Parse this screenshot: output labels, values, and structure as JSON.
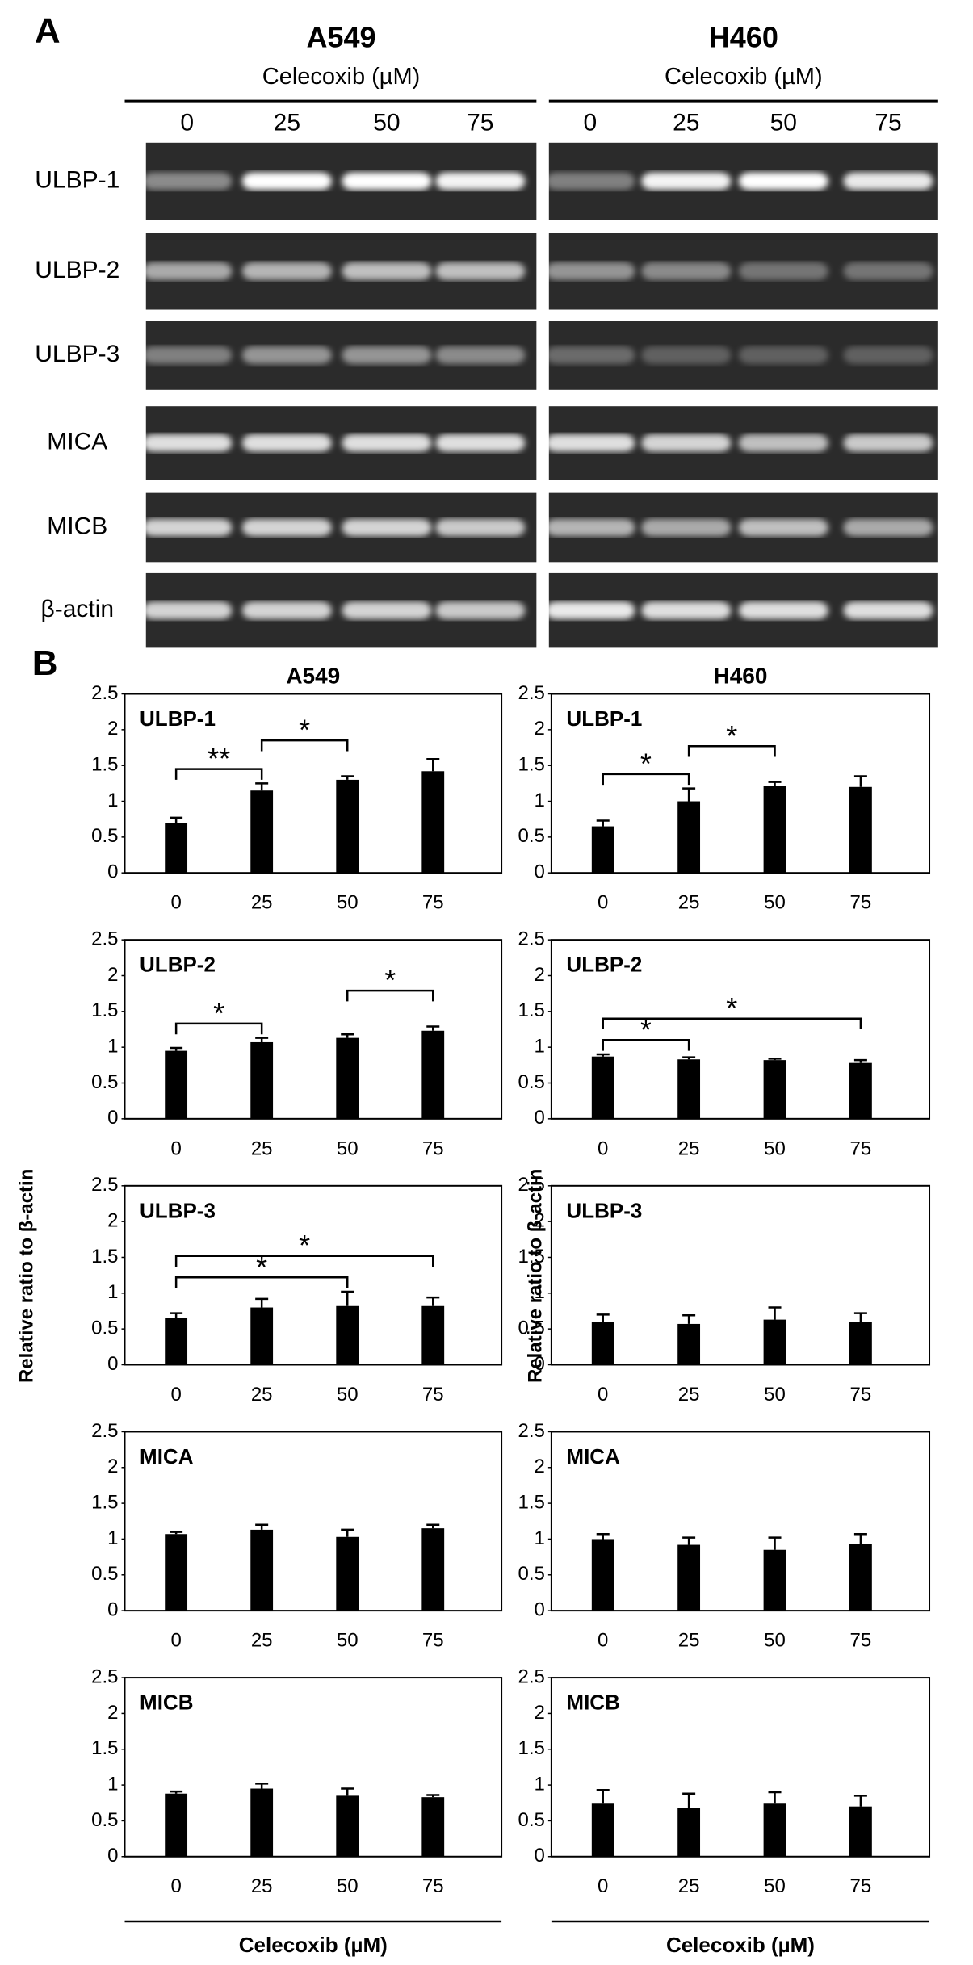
{
  "panel_a": {
    "label": "A",
    "cell_lines": [
      {
        "name": "A549",
        "treatment": "Celecoxib (µM)",
        "doses": [
          "0",
          "25",
          "50",
          "75"
        ]
      },
      {
        "name": "H460",
        "treatment": "Celecoxib (µM)",
        "doses": [
          "0",
          "25",
          "50",
          "75"
        ]
      }
    ],
    "genes": [
      "ULBP-1",
      "ULBP-2",
      "ULBP-3",
      "MICA",
      "MICB",
      "β-actin"
    ]
  },
  "panel_b": {
    "label": "B",
    "columns": [
      "A549",
      "H460"
    ],
    "y_label": "Relative ratio to β-actin",
    "x_label": "Celecoxib (µM)"
  },
  "chart_data": [
    {
      "type": "bar",
      "title": "ULBP-1",
      "categories": [
        "0",
        "25",
        "50",
        "75"
      ],
      "values": [
        0.7,
        1.15,
        1.3,
        1.42
      ],
      "errors": [
        0.07,
        0.1,
        0.05,
        0.17
      ],
      "color": "#000000",
      "ylim": [
        0,
        2.5
      ],
      "yticks": [
        0,
        0.5,
        1,
        1.5,
        2,
        2.5
      ],
      "annotations": [
        {
          "between": [
            "0",
            "25"
          ],
          "label": "**"
        },
        {
          "between": [
            "25",
            "50"
          ],
          "label": "*"
        }
      ]
    },
    {
      "type": "bar",
      "title": "ULBP-1",
      "categories": [
        "0",
        "25",
        "50",
        "75"
      ],
      "values": [
        0.65,
        1.0,
        1.22,
        1.2
      ],
      "errors": [
        0.08,
        0.18,
        0.05,
        0.15
      ],
      "color": "#000000",
      "ylim": [
        0,
        2.5
      ],
      "yticks": [
        0,
        0.5,
        1,
        1.5,
        2,
        2.5
      ],
      "annotations": [
        {
          "between": [
            "0",
            "25"
          ],
          "label": "*"
        },
        {
          "between": [
            "25",
            "50"
          ],
          "label": "*"
        }
      ]
    },
    {
      "type": "bar",
      "title": "ULBP-2",
      "categories": [
        "0",
        "25",
        "50",
        "75"
      ],
      "values": [
        0.95,
        1.07,
        1.13,
        1.23
      ],
      "errors": [
        0.04,
        0.06,
        0.05,
        0.06
      ],
      "color": "#000000",
      "ylim": [
        0,
        2.5
      ],
      "yticks": [
        0,
        0.5,
        1,
        1.5,
        2,
        2.5
      ],
      "annotations": [
        {
          "between": [
            "0",
            "25"
          ],
          "label": "*"
        },
        {
          "between": [
            "50",
            "75"
          ],
          "label": "*"
        }
      ]
    },
    {
      "type": "bar",
      "title": "ULBP-2",
      "categories": [
        "0",
        "25",
        "50",
        "75"
      ],
      "values": [
        0.87,
        0.83,
        0.82,
        0.78
      ],
      "errors": [
        0.03,
        0.03,
        0.02,
        0.04
      ],
      "color": "#000000",
      "ylim": [
        0,
        2.5
      ],
      "yticks": [
        0,
        0.5,
        1,
        1.5,
        2,
        2.5
      ],
      "annotations": [
        {
          "between": [
            "0",
            "25"
          ],
          "label": "*"
        },
        {
          "between": [
            "0",
            "75"
          ],
          "label": "*"
        }
      ]
    },
    {
      "type": "bar",
      "title": "ULBP-3",
      "categories": [
        "0",
        "25",
        "50",
        "75"
      ],
      "values": [
        0.65,
        0.8,
        0.82,
        0.82
      ],
      "errors": [
        0.07,
        0.12,
        0.2,
        0.12
      ],
      "color": "#000000",
      "ylim": [
        0,
        2.5
      ],
      "yticks": [
        0,
        0.5,
        1,
        1.5,
        2,
        2.5
      ],
      "annotations": [
        {
          "between": [
            "0",
            "50"
          ],
          "label": "*"
        },
        {
          "between": [
            "0",
            "75"
          ],
          "label": "*"
        }
      ]
    },
    {
      "type": "bar",
      "title": "ULBP-3",
      "categories": [
        "0",
        "25",
        "50",
        "75"
      ],
      "values": [
        0.6,
        0.57,
        0.63,
        0.6
      ],
      "errors": [
        0.1,
        0.12,
        0.17,
        0.12
      ],
      "color": "#000000",
      "ylim": [
        0,
        2.5
      ],
      "yticks": [
        0,
        0.5,
        1,
        1.5,
        2,
        2.5
      ]
    },
    {
      "type": "bar",
      "title": "MICA",
      "categories": [
        "0",
        "25",
        "50",
        "75"
      ],
      "values": [
        1.07,
        1.13,
        1.03,
        1.15
      ],
      "errors": [
        0.03,
        0.07,
        0.1,
        0.05
      ],
      "color": "#000000",
      "ylim": [
        0,
        2.5
      ],
      "yticks": [
        0,
        0.5,
        1,
        1.5,
        2,
        2.5
      ]
    },
    {
      "type": "bar",
      "title": "MICA",
      "categories": [
        "0",
        "25",
        "50",
        "75"
      ],
      "values": [
        1.0,
        0.92,
        0.85,
        0.93
      ],
      "errors": [
        0.07,
        0.1,
        0.17,
        0.14
      ],
      "color": "#000000",
      "ylim": [
        0,
        2.5
      ],
      "yticks": [
        0,
        0.5,
        1,
        1.5,
        2,
        2.5
      ]
    },
    {
      "type": "bar",
      "title": "MICB",
      "categories": [
        "0",
        "25",
        "50",
        "75"
      ],
      "values": [
        0.88,
        0.95,
        0.85,
        0.83
      ],
      "errors": [
        0.03,
        0.07,
        0.1,
        0.03
      ],
      "color": "#000000",
      "ylim": [
        0,
        2.5
      ],
      "yticks": [
        0,
        0.5,
        1,
        1.5,
        2,
        2.5
      ]
    },
    {
      "type": "bar",
      "title": "MICB",
      "categories": [
        "0",
        "25",
        "50",
        "75"
      ],
      "values": [
        0.75,
        0.68,
        0.75,
        0.7
      ],
      "errors": [
        0.18,
        0.2,
        0.15,
        0.15
      ],
      "color": "#000000",
      "ylim": [
        0,
        2.5
      ],
      "yticks": [
        0,
        0.5,
        1,
        1.5,
        2,
        2.5
      ]
    }
  ]
}
